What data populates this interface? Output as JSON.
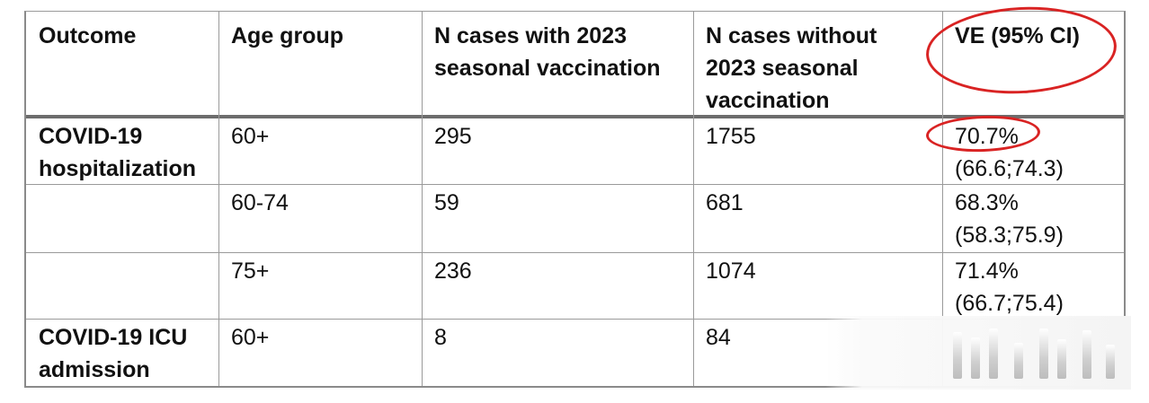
{
  "table": {
    "headers": {
      "outcome": "Outcome",
      "age_group": "Age group",
      "with_vacc_line1": "N cases with 2023",
      "with_vacc_line2": "seasonal vaccination",
      "without_vacc_line1": "N cases without",
      "without_vacc_line2": "2023 seasonal",
      "without_vacc_line3": "vaccination",
      "ve": "VE (95% CI)"
    },
    "rows": [
      {
        "outcome_line1": "COVID-19",
        "outcome_line2": "hospitalization",
        "age_group": "60+",
        "with_vacc": "295",
        "without_vacc": "1755",
        "ve": "70.7%",
        "ci": "(66.6;74.3)"
      },
      {
        "outcome_line1": "",
        "outcome_line2": "",
        "age_group": "60-74",
        "with_vacc": "59",
        "without_vacc": "681",
        "ve": "68.3%",
        "ci": "(58.3;75.9)"
      },
      {
        "outcome_line1": "",
        "outcome_line2": "",
        "age_group": "75+",
        "with_vacc": "236",
        "without_vacc": "1074",
        "ve": "71.4%",
        "ci": "(66.7;75.4)"
      },
      {
        "outcome_line1": "COVID-19 ICU",
        "outcome_line2": "admission",
        "age_group": "60+",
        "with_vacc": "8",
        "without_vacc": "84",
        "ve": "",
        "ci": ""
      }
    ]
  },
  "annotations": {
    "highlight_color": "#d92323",
    "circled_items": [
      "VE (95% CI)",
      "70.7%"
    ]
  }
}
